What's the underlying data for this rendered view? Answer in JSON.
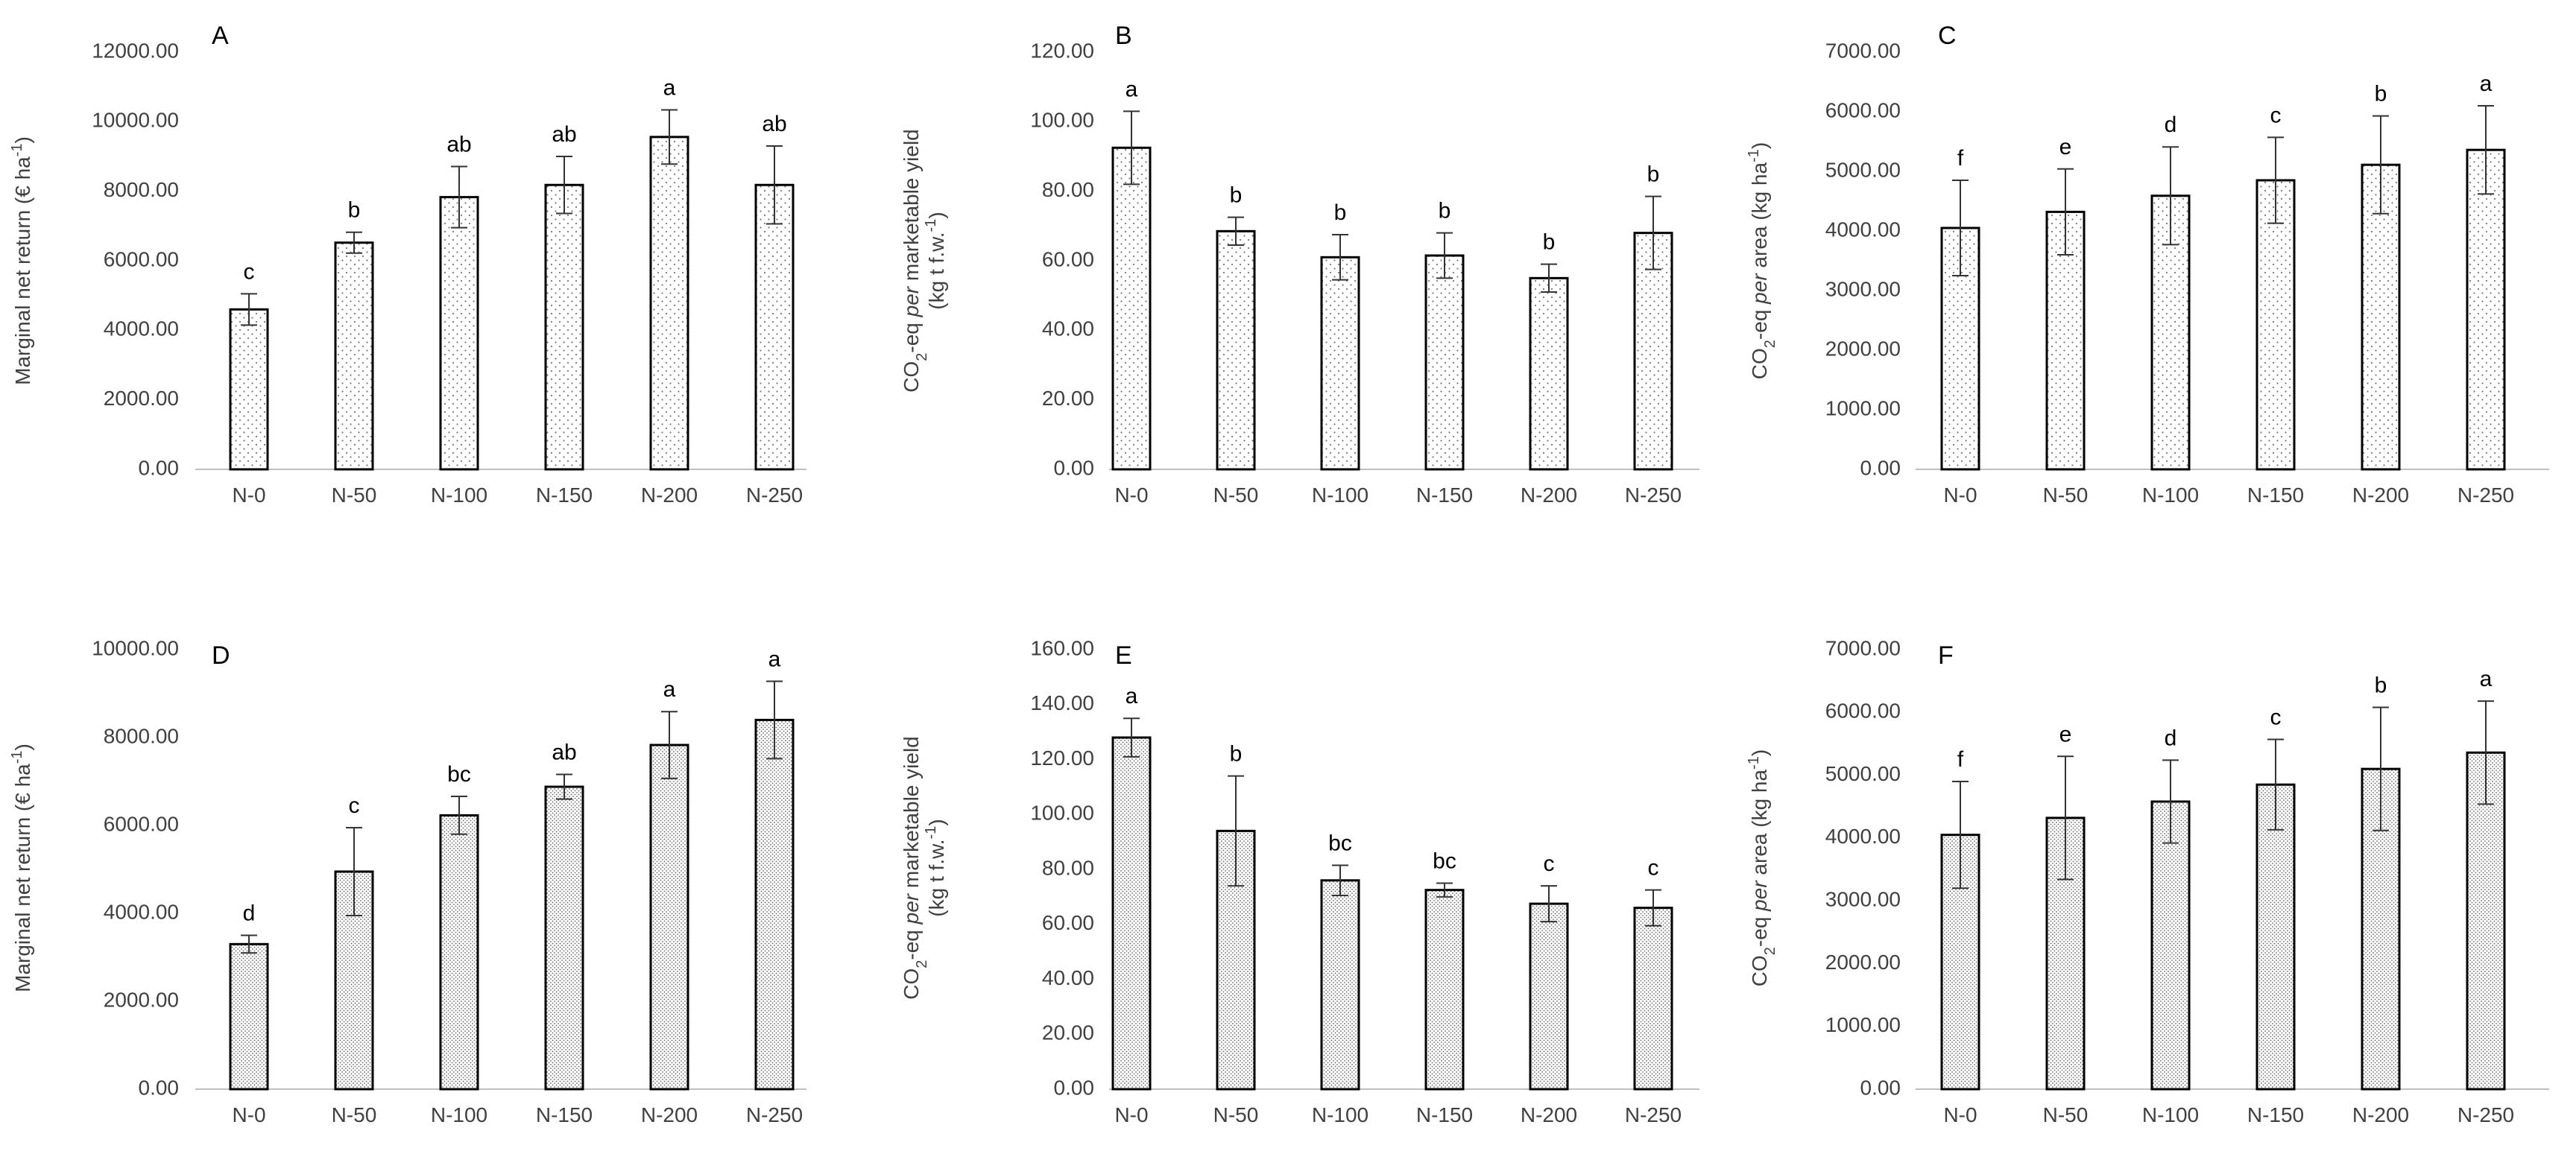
{
  "chart_data": [
    {
      "type": "bar",
      "panel_label": "A",
      "categories": [
        "N-0",
        "N-50",
        "N-100",
        "N-150",
        "N-200",
        "N-250"
      ],
      "values": [
        4600,
        6520,
        7830,
        8180,
        9560,
        8180
      ],
      "errors": [
        450,
        300,
        880,
        820,
        780,
        1120
      ],
      "letters": [
        "c",
        "b",
        "ab",
        "ab",
        "a",
        "ab"
      ],
      "ylim": [
        0,
        12000
      ],
      "ticks": [
        "0.00",
        "2000.00",
        "4000.00",
        "6000.00",
        "8000.00",
        "10000.00",
        "12000.00"
      ],
      "ylabel": "Marginal net return (€ ha-1)",
      "ylabel_parts": {
        "pre": "Marginal net return (€ ha",
        "sup": "-1",
        "post": ")"
      },
      "pattern": "sparse"
    },
    {
      "type": "bar",
      "panel_label": "B",
      "categories": [
        "N-0",
        "N-50",
        "N-100",
        "N-150",
        "N-200",
        "N-250"
      ],
      "values": [
        92.5,
        68.5,
        61.0,
        61.5,
        55.0,
        68.0
      ],
      "errors": [
        10.5,
        4.0,
        6.5,
        6.5,
        4.0,
        10.5
      ],
      "letters": [
        "a",
        "b",
        "b",
        "b",
        "b",
        "b"
      ],
      "ylim": [
        0,
        120
      ],
      "ticks": [
        "0.00",
        "20.00",
        "40.00",
        "60.00",
        "80.00",
        "100.00",
        "120.00"
      ],
      "ylabel": "CO2-eq per marketable yield (kg t f.w.-1)",
      "ylabel_parts": {
        "l1": "CO",
        "l1sub": "2",
        "l1mid": "-eq ",
        "l1it": "per",
        "l1post": " marketable yield",
        "l2": "(kg t f.w.",
        "l2sup": "-1",
        "l2post": ")"
      },
      "pattern": "sparse"
    },
    {
      "type": "bar",
      "panel_label": "C",
      "categories": [
        "N-0",
        "N-50",
        "N-100",
        "N-150",
        "N-200",
        "N-250"
      ],
      "values": [
        4050,
        4320,
        4590,
        4850,
        5110,
        5360
      ],
      "errors": [
        800,
        720,
        820,
        720,
        820,
        740
      ],
      "letters": [
        "f",
        "e",
        "d",
        "c",
        "b",
        "a"
      ],
      "ylim": [
        0,
        7000
      ],
      "ticks": [
        "0.00",
        "1000.00",
        "2000.00",
        "3000.00",
        "4000.00",
        "5000.00",
        "6000.00",
        "7000.00"
      ],
      "ylabel": "CO2-eq per area (kg ha-1)",
      "ylabel_parts": {
        "pre": "CO",
        "sub": "2",
        "mid": "-eq ",
        "it": "per",
        "post": " area (kg ha",
        "sup": "-1",
        "end": ")"
      },
      "pattern": "sparse"
    },
    {
      "type": "bar",
      "panel_label": "D",
      "categories": [
        "N-0",
        "N-50",
        "N-100",
        "N-150",
        "N-200",
        "N-250"
      ],
      "values": [
        3300,
        4950,
        6230,
        6880,
        7830,
        8400
      ],
      "errors": [
        200,
        1000,
        430,
        280,
        760,
        880
      ],
      "letters": [
        "d",
        "c",
        "bc",
        "ab",
        "a",
        "a"
      ],
      "ylim": [
        0,
        10000
      ],
      "ticks": [
        "0.00",
        "2000.00",
        "4000.00",
        "6000.00",
        "8000.00",
        "10000.00"
      ],
      "ylabel": "Marginal net return (€ ha-1)",
      "ylabel_parts": {
        "pre": "Marginal net return (€ ha",
        "sup": "-1",
        "post": ")"
      },
      "pattern": "dense"
    },
    {
      "type": "bar",
      "panel_label": "E",
      "categories": [
        "N-0",
        "N-50",
        "N-100",
        "N-150",
        "N-200",
        "N-250"
      ],
      "values": [
        128,
        94,
        76,
        72.5,
        67.5,
        66
      ],
      "errors": [
        7,
        20,
        5.5,
        2.5,
        6.5,
        6.5
      ],
      "letters": [
        "a",
        "b",
        "bc",
        "bc",
        "c",
        "c"
      ],
      "ylim": [
        0,
        160
      ],
      "ticks": [
        "0.00",
        "20.00",
        "40.00",
        "60.00",
        "80.00",
        "100.00",
        "120.00",
        "140.00",
        "160.00"
      ],
      "ylabel": "CO2-eq per marketable yield (kg t f.w.-1)",
      "ylabel_parts": {
        "l1": "CO",
        "l1sub": "2",
        "l1mid": "-eq ",
        "l1it": "per",
        "l1post": " marketable yield",
        "l2": "(kg t f.w.",
        "l2sup": "-1",
        "l2post": ")"
      },
      "pattern": "dense"
    },
    {
      "type": "bar",
      "panel_label": "F",
      "categories": [
        "N-0",
        "N-50",
        "N-100",
        "N-150",
        "N-200",
        "N-250"
      ],
      "values": [
        4050,
        4320,
        4580,
        4850,
        5100,
        5360
      ],
      "errors": [
        850,
        980,
        660,
        720,
        980,
        820
      ],
      "letters": [
        "f",
        "e",
        "d",
        "c",
        "b",
        "a"
      ],
      "ylim": [
        0,
        7000
      ],
      "ticks": [
        "0.00",
        "1000.00",
        "2000.00",
        "3000.00",
        "4000.00",
        "5000.00",
        "6000.00",
        "7000.00"
      ],
      "ylabel": "CO2-eq per area (kg ha-1)",
      "ylabel_parts": {
        "pre": "CO",
        "sub": "2",
        "mid": "-eq ",
        "it": "per",
        "post": " area (kg ha",
        "sup": "-1",
        "end": ")"
      },
      "pattern": "dense"
    }
  ]
}
